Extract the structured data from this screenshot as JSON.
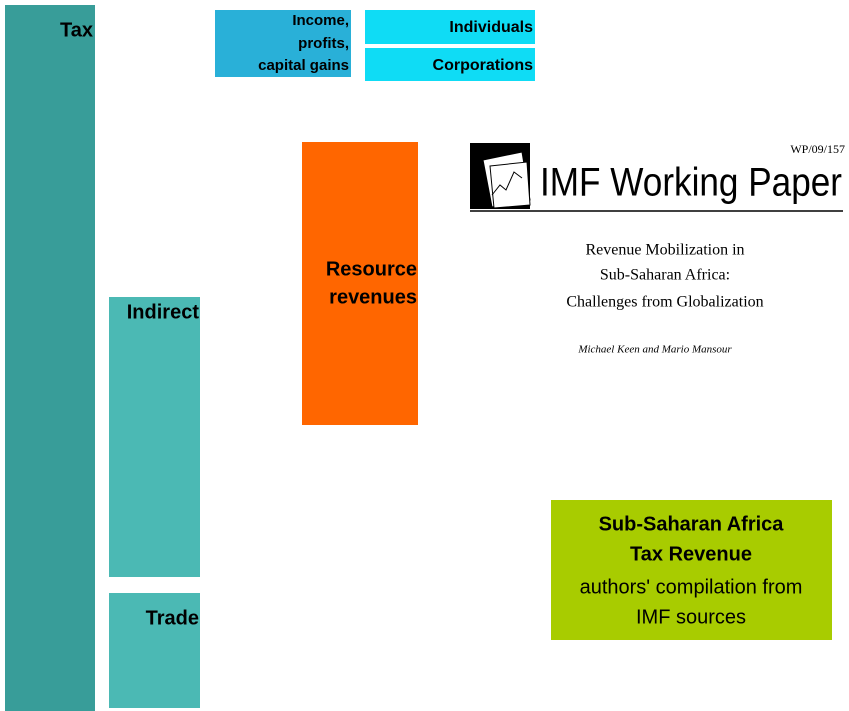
{
  "blocks": {
    "tax": {
      "label": "Tax"
    },
    "income": {
      "lines": [
        "Income,",
        "profits,",
        "capital gains"
      ]
    },
    "individuals": {
      "label": "Individuals"
    },
    "corporations": {
      "label": "Corporations"
    },
    "resource": {
      "lines": [
        "Resource",
        "revenues"
      ]
    },
    "indirect": {
      "label": "Indirect"
    },
    "trade": {
      "label": "Trade"
    }
  },
  "paper": {
    "number": "WP/09/157",
    "series": "IMF Working Paper",
    "title_lines": [
      "Revenue Mobilization in",
      "Sub-Saharan Africa:",
      "Challenges from Globalization"
    ],
    "authors": "Michael Keen and Mario Mansour"
  },
  "caption": {
    "title_lines": [
      "Sub-Saharan Africa",
      "Tax Revenue"
    ],
    "source_lines": [
      "authors' compilation from",
      "IMF sources"
    ]
  }
}
